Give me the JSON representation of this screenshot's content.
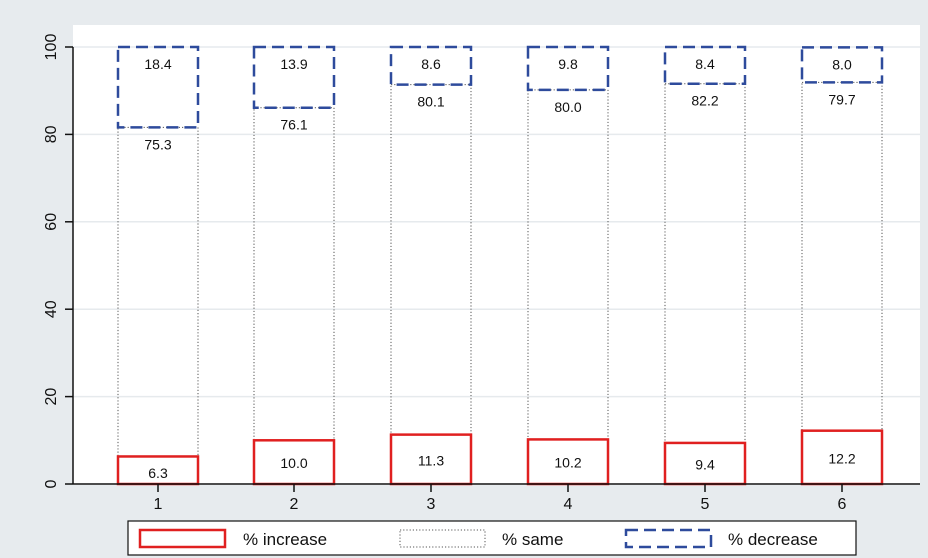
{
  "chart_data": {
    "type": "bar",
    "stacked": true,
    "categories": [
      "1",
      "2",
      "3",
      "4",
      "5",
      "6"
    ],
    "series": [
      {
        "name": "% increase",
        "values": [
          6.3,
          10.0,
          11.3,
          10.2,
          9.4,
          12.2
        ],
        "color": "#e02020",
        "style": "solid"
      },
      {
        "name": "% same",
        "values": [
          75.3,
          76.1,
          80.1,
          80.0,
          82.2,
          79.7
        ],
        "color": "#555555",
        "style": "dotted"
      },
      {
        "name": "% decrease",
        "values": [
          18.4,
          13.9,
          8.6,
          9.8,
          8.4,
          8.0
        ],
        "color": "#2e4b9c",
        "style": "dashed"
      }
    ],
    "ylim": [
      0,
      100
    ],
    "yticks": [
      "0",
      "20",
      "40",
      "60",
      "80",
      "100"
    ],
    "grid": true,
    "legend_position": "bottom"
  },
  "colors": {
    "background": "#e7ebee",
    "plot_background": "#ffffff",
    "grid": "#e6eaed"
  }
}
